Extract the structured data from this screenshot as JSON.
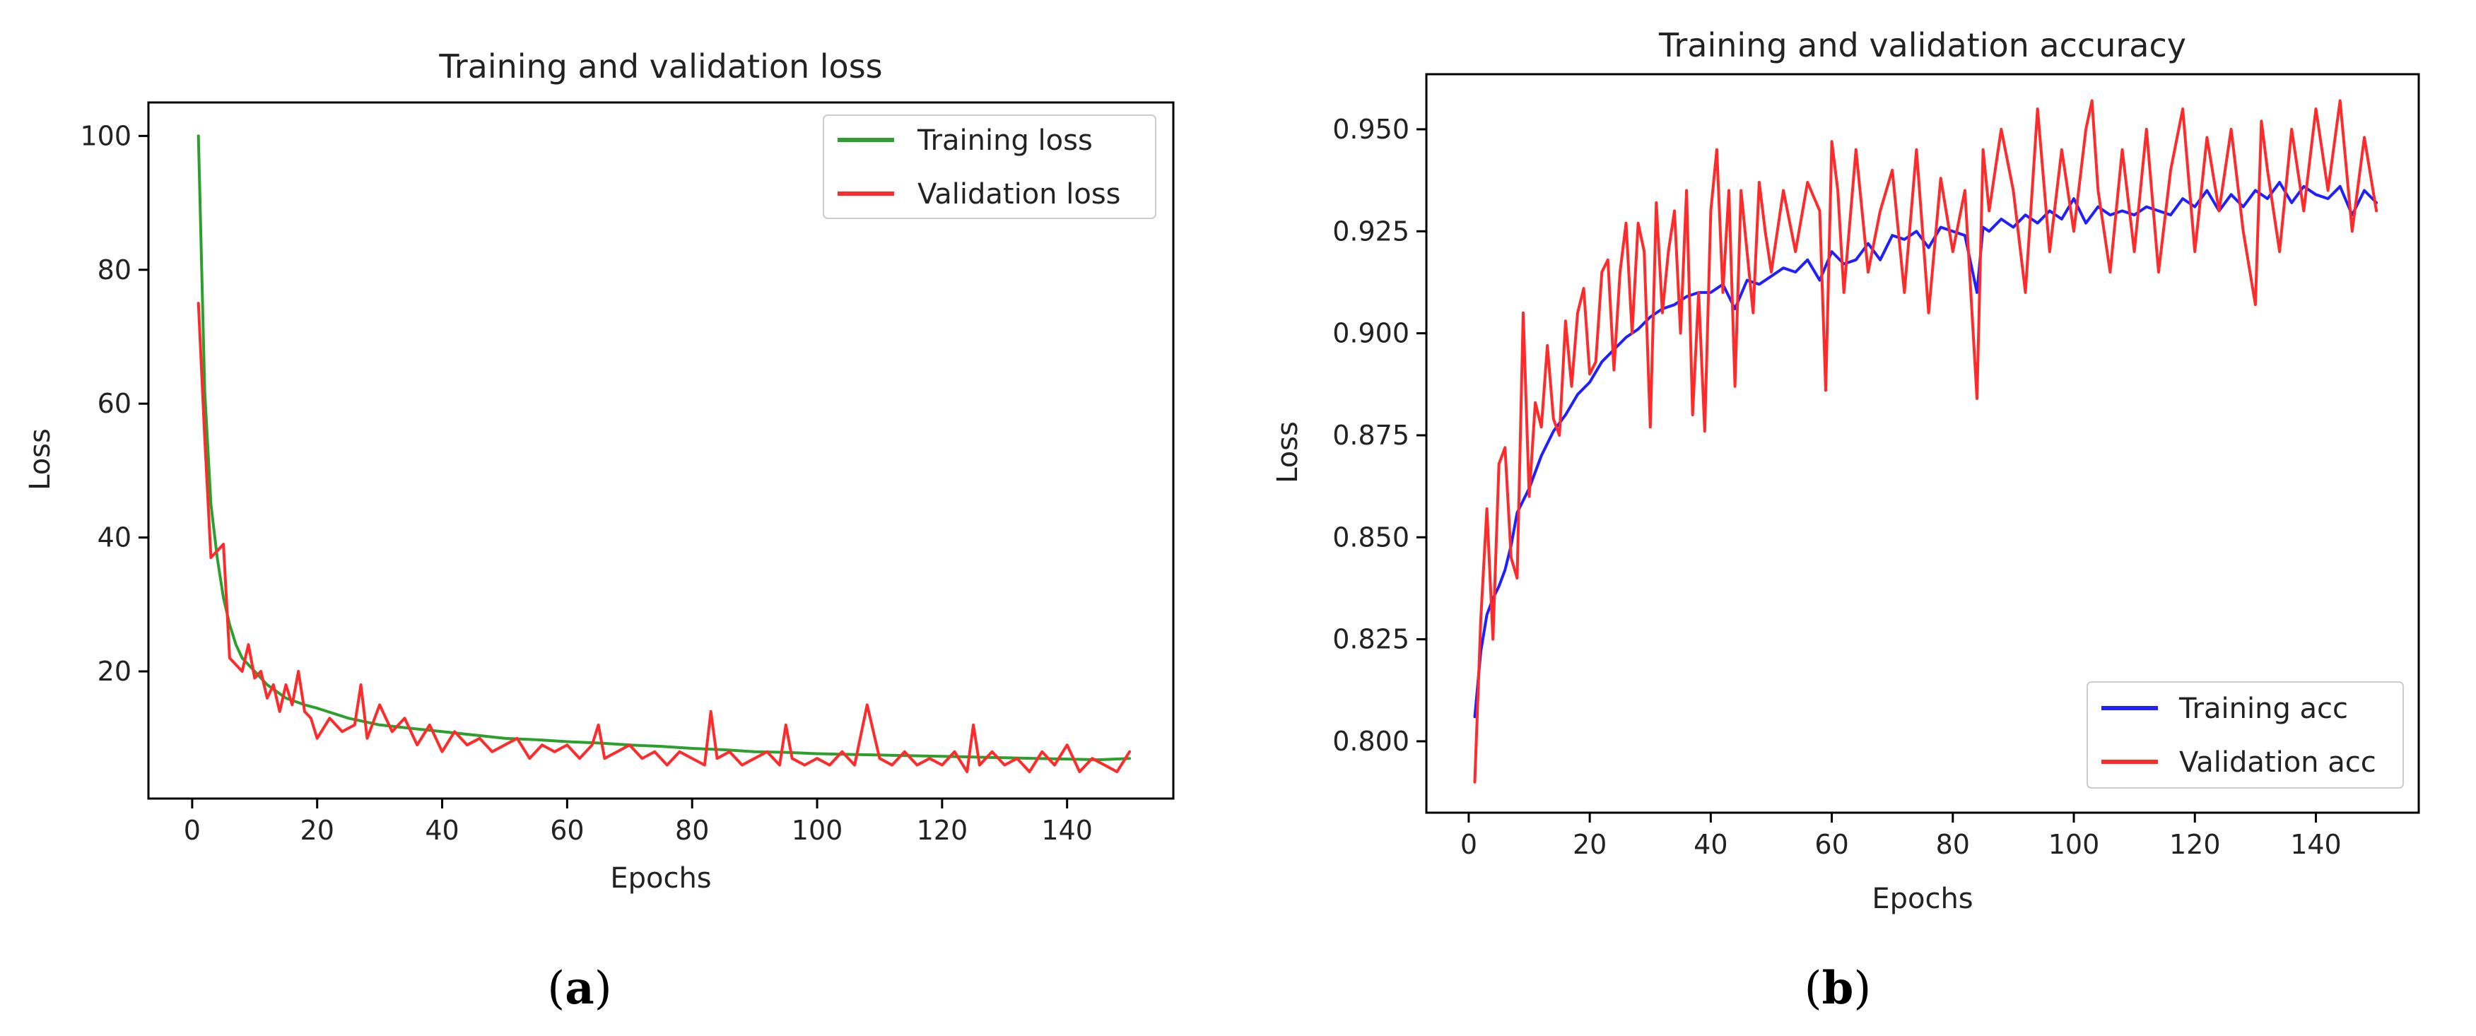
{
  "figure": {
    "panel_a_letter": "a",
    "panel_b_letter": "b",
    "paren_open": "(",
    "paren_close": ")"
  },
  "colors": {
    "training_loss": "#2ca02c",
    "validation": "#ff2a2a",
    "training_acc": "#1f1fff",
    "axis": "#000000"
  },
  "chart_data": [
    {
      "type": "line",
      "title": "Training and validation loss",
      "xlabel": "Epochs",
      "ylabel": "Loss",
      "xlim": [
        -7,
        157
      ],
      "ylim": [
        1,
        105
      ],
      "xticks": [
        0,
        20,
        40,
        60,
        80,
        100,
        120,
        140
      ],
      "yticks": [
        20,
        40,
        60,
        80,
        100
      ],
      "ytick_labels": [
        "20",
        "40",
        "60",
        "80",
        "100"
      ],
      "legend_position": "top-right",
      "series": [
        {
          "name": "Training loss",
          "color": "#2ca02c",
          "x": [
            1,
            2,
            3,
            4,
            5,
            6,
            7,
            8,
            10,
            12,
            15,
            18,
            20,
            25,
            30,
            35,
            40,
            45,
            50,
            55,
            60,
            65,
            70,
            75,
            80,
            85,
            90,
            95,
            100,
            105,
            110,
            115,
            120,
            125,
            130,
            135,
            140,
            145,
            150
          ],
          "values": [
            100,
            62,
            45,
            37,
            31,
            27,
            24,
            22,
            20,
            18,
            16,
            15,
            14.5,
            13,
            12,
            11.5,
            11,
            10.5,
            10,
            9.8,
            9.5,
            9.3,
            9,
            8.8,
            8.5,
            8.3,
            8,
            7.9,
            7.7,
            7.6,
            7.5,
            7.4,
            7.3,
            7.2,
            7.1,
            7,
            6.9,
            6.8,
            7
          ]
        },
        {
          "name": "Validation loss",
          "color": "#ff2a2a",
          "x": [
            1,
            2,
            3,
            4,
            5,
            6,
            7,
            8,
            9,
            10,
            11,
            12,
            13,
            14,
            15,
            16,
            17,
            18,
            19,
            20,
            22,
            24,
            26,
            27,
            28,
            30,
            32,
            34,
            36,
            38,
            40,
            42,
            44,
            46,
            48,
            50,
            52,
            54,
            56,
            58,
            60,
            62,
            64,
            65,
            66,
            68,
            70,
            72,
            74,
            76,
            78,
            80,
            82,
            83,
            84,
            86,
            88,
            90,
            92,
            94,
            95,
            96,
            98,
            100,
            102,
            104,
            106,
            108,
            110,
            112,
            114,
            116,
            118,
            120,
            122,
            124,
            125,
            126,
            128,
            130,
            132,
            134,
            136,
            138,
            140,
            142,
            144,
            146,
            148,
            150
          ],
          "values": [
            75,
            55,
            37,
            38,
            39,
            22,
            21,
            20,
            24,
            19,
            20,
            16,
            18,
            14,
            18,
            15,
            20,
            14,
            13,
            10,
            13,
            11,
            12,
            18,
            10,
            15,
            11,
            13,
            9,
            12,
            8,
            11,
            9,
            10,
            8,
            9,
            10,
            7,
            9,
            8,
            9,
            7,
            9,
            12,
            7,
            8,
            9,
            7,
            8,
            6,
            8,
            7,
            6,
            14,
            7,
            8,
            6,
            7,
            8,
            6,
            12,
            7,
            6,
            7,
            6,
            8,
            6,
            15,
            7,
            6,
            8,
            6,
            7,
            6,
            8,
            5,
            12,
            6,
            8,
            6,
            7,
            5,
            8,
            6,
            9,
            5,
            7,
            6,
            5,
            8
          ]
        }
      ]
    },
    {
      "type": "line",
      "title": "Training and validation accuracy",
      "xlabel": "Epochs",
      "ylabel": "Loss",
      "xlim": [
        -7,
        157
      ],
      "ylim": [
        0.7825,
        0.9635
      ],
      "xticks": [
        0,
        20,
        40,
        60,
        80,
        100,
        120,
        140
      ],
      "yticks": [
        0.8,
        0.825,
        0.85,
        0.875,
        0.9,
        0.925,
        0.95
      ],
      "ytick_labels": [
        "0.800",
        "0.825",
        "0.850",
        "0.875",
        "0.900",
        "0.925",
        "0.950"
      ],
      "legend_position": "lower-right",
      "series": [
        {
          "name": "Training acc",
          "color": "#1f1fff",
          "x": [
            1,
            2,
            3,
            4,
            5,
            6,
            7,
            8,
            10,
            12,
            14,
            16,
            18,
            20,
            22,
            24,
            26,
            28,
            30,
            32,
            34,
            36,
            38,
            40,
            42,
            44,
            46,
            48,
            50,
            52,
            54,
            56,
            58,
            60,
            62,
            64,
            66,
            68,
            70,
            72,
            74,
            76,
            78,
            80,
            82,
            84,
            85,
            86,
            88,
            90,
            92,
            94,
            96,
            98,
            100,
            102,
            104,
            106,
            108,
            110,
            112,
            114,
            116,
            118,
            120,
            122,
            124,
            126,
            128,
            130,
            132,
            134,
            136,
            138,
            140,
            142,
            144,
            146,
            148,
            150
          ],
          "values": [
            0.806,
            0.822,
            0.831,
            0.835,
            0.838,
            0.842,
            0.848,
            0.856,
            0.862,
            0.87,
            0.876,
            0.88,
            0.885,
            0.888,
            0.893,
            0.896,
            0.899,
            0.901,
            0.904,
            0.906,
            0.907,
            0.909,
            0.91,
            0.91,
            0.912,
            0.906,
            0.913,
            0.912,
            0.914,
            0.916,
            0.915,
            0.918,
            0.913,
            0.92,
            0.917,
            0.918,
            0.922,
            0.918,
            0.924,
            0.923,
            0.925,
            0.921,
            0.926,
            0.925,
            0.924,
            0.91,
            0.926,
            0.925,
            0.928,
            0.926,
            0.929,
            0.927,
            0.93,
            0.928,
            0.933,
            0.927,
            0.931,
            0.929,
            0.93,
            0.929,
            0.931,
            0.93,
            0.929,
            0.933,
            0.931,
            0.935,
            0.93,
            0.934,
            0.931,
            0.935,
            0.933,
            0.937,
            0.932,
            0.936,
            0.934,
            0.933,
            0.936,
            0.929,
            0.935,
            0.932
          ]
        },
        {
          "name": "Validation acc",
          "color": "#ff2a2a",
          "x": [
            1,
            2,
            3,
            4,
            5,
            6,
            7,
            8,
            9,
            10,
            11,
            12,
            13,
            14,
            15,
            16,
            17,
            18,
            19,
            20,
            21,
            22,
            23,
            24,
            25,
            26,
            27,
            28,
            29,
            30,
            31,
            32,
            33,
            34,
            35,
            36,
            37,
            38,
            39,
            40,
            41,
            42,
            43,
            44,
            45,
            46,
            47,
            48,
            49,
            50,
            52,
            54,
            56,
            58,
            59,
            60,
            61,
            62,
            64,
            66,
            68,
            70,
            72,
            74,
            76,
            78,
            80,
            82,
            84,
            85,
            86,
            88,
            90,
            92,
            94,
            96,
            98,
            100,
            102,
            103,
            104,
            106,
            108,
            110,
            112,
            114,
            116,
            118,
            120,
            122,
            124,
            126,
            128,
            130,
            131,
            132,
            134,
            136,
            138,
            140,
            142,
            144,
            146,
            148,
            150
          ],
          "values": [
            0.79,
            0.83,
            0.857,
            0.825,
            0.868,
            0.872,
            0.845,
            0.84,
            0.905,
            0.86,
            0.883,
            0.877,
            0.897,
            0.879,
            0.875,
            0.903,
            0.887,
            0.905,
            0.911,
            0.89,
            0.893,
            0.915,
            0.918,
            0.891,
            0.915,
            0.927,
            0.9,
            0.927,
            0.92,
            0.877,
            0.932,
            0.905,
            0.92,
            0.93,
            0.9,
            0.935,
            0.88,
            0.91,
            0.876,
            0.93,
            0.945,
            0.91,
            0.935,
            0.887,
            0.935,
            0.92,
            0.905,
            0.937,
            0.925,
            0.915,
            0.935,
            0.92,
            0.937,
            0.93,
            0.886,
            0.947,
            0.935,
            0.91,
            0.945,
            0.915,
            0.93,
            0.94,
            0.91,
            0.945,
            0.905,
            0.938,
            0.92,
            0.935,
            0.884,
            0.945,
            0.93,
            0.95,
            0.935,
            0.91,
            0.955,
            0.92,
            0.945,
            0.925,
            0.95,
            0.957,
            0.935,
            0.915,
            0.945,
            0.92,
            0.95,
            0.915,
            0.94,
            0.955,
            0.92,
            0.948,
            0.93,
            0.95,
            0.925,
            0.907,
            0.952,
            0.94,
            0.92,
            0.95,
            0.93,
            0.955,
            0.935,
            0.957,
            0.925,
            0.948,
            0.93
          ]
        }
      ]
    }
  ]
}
